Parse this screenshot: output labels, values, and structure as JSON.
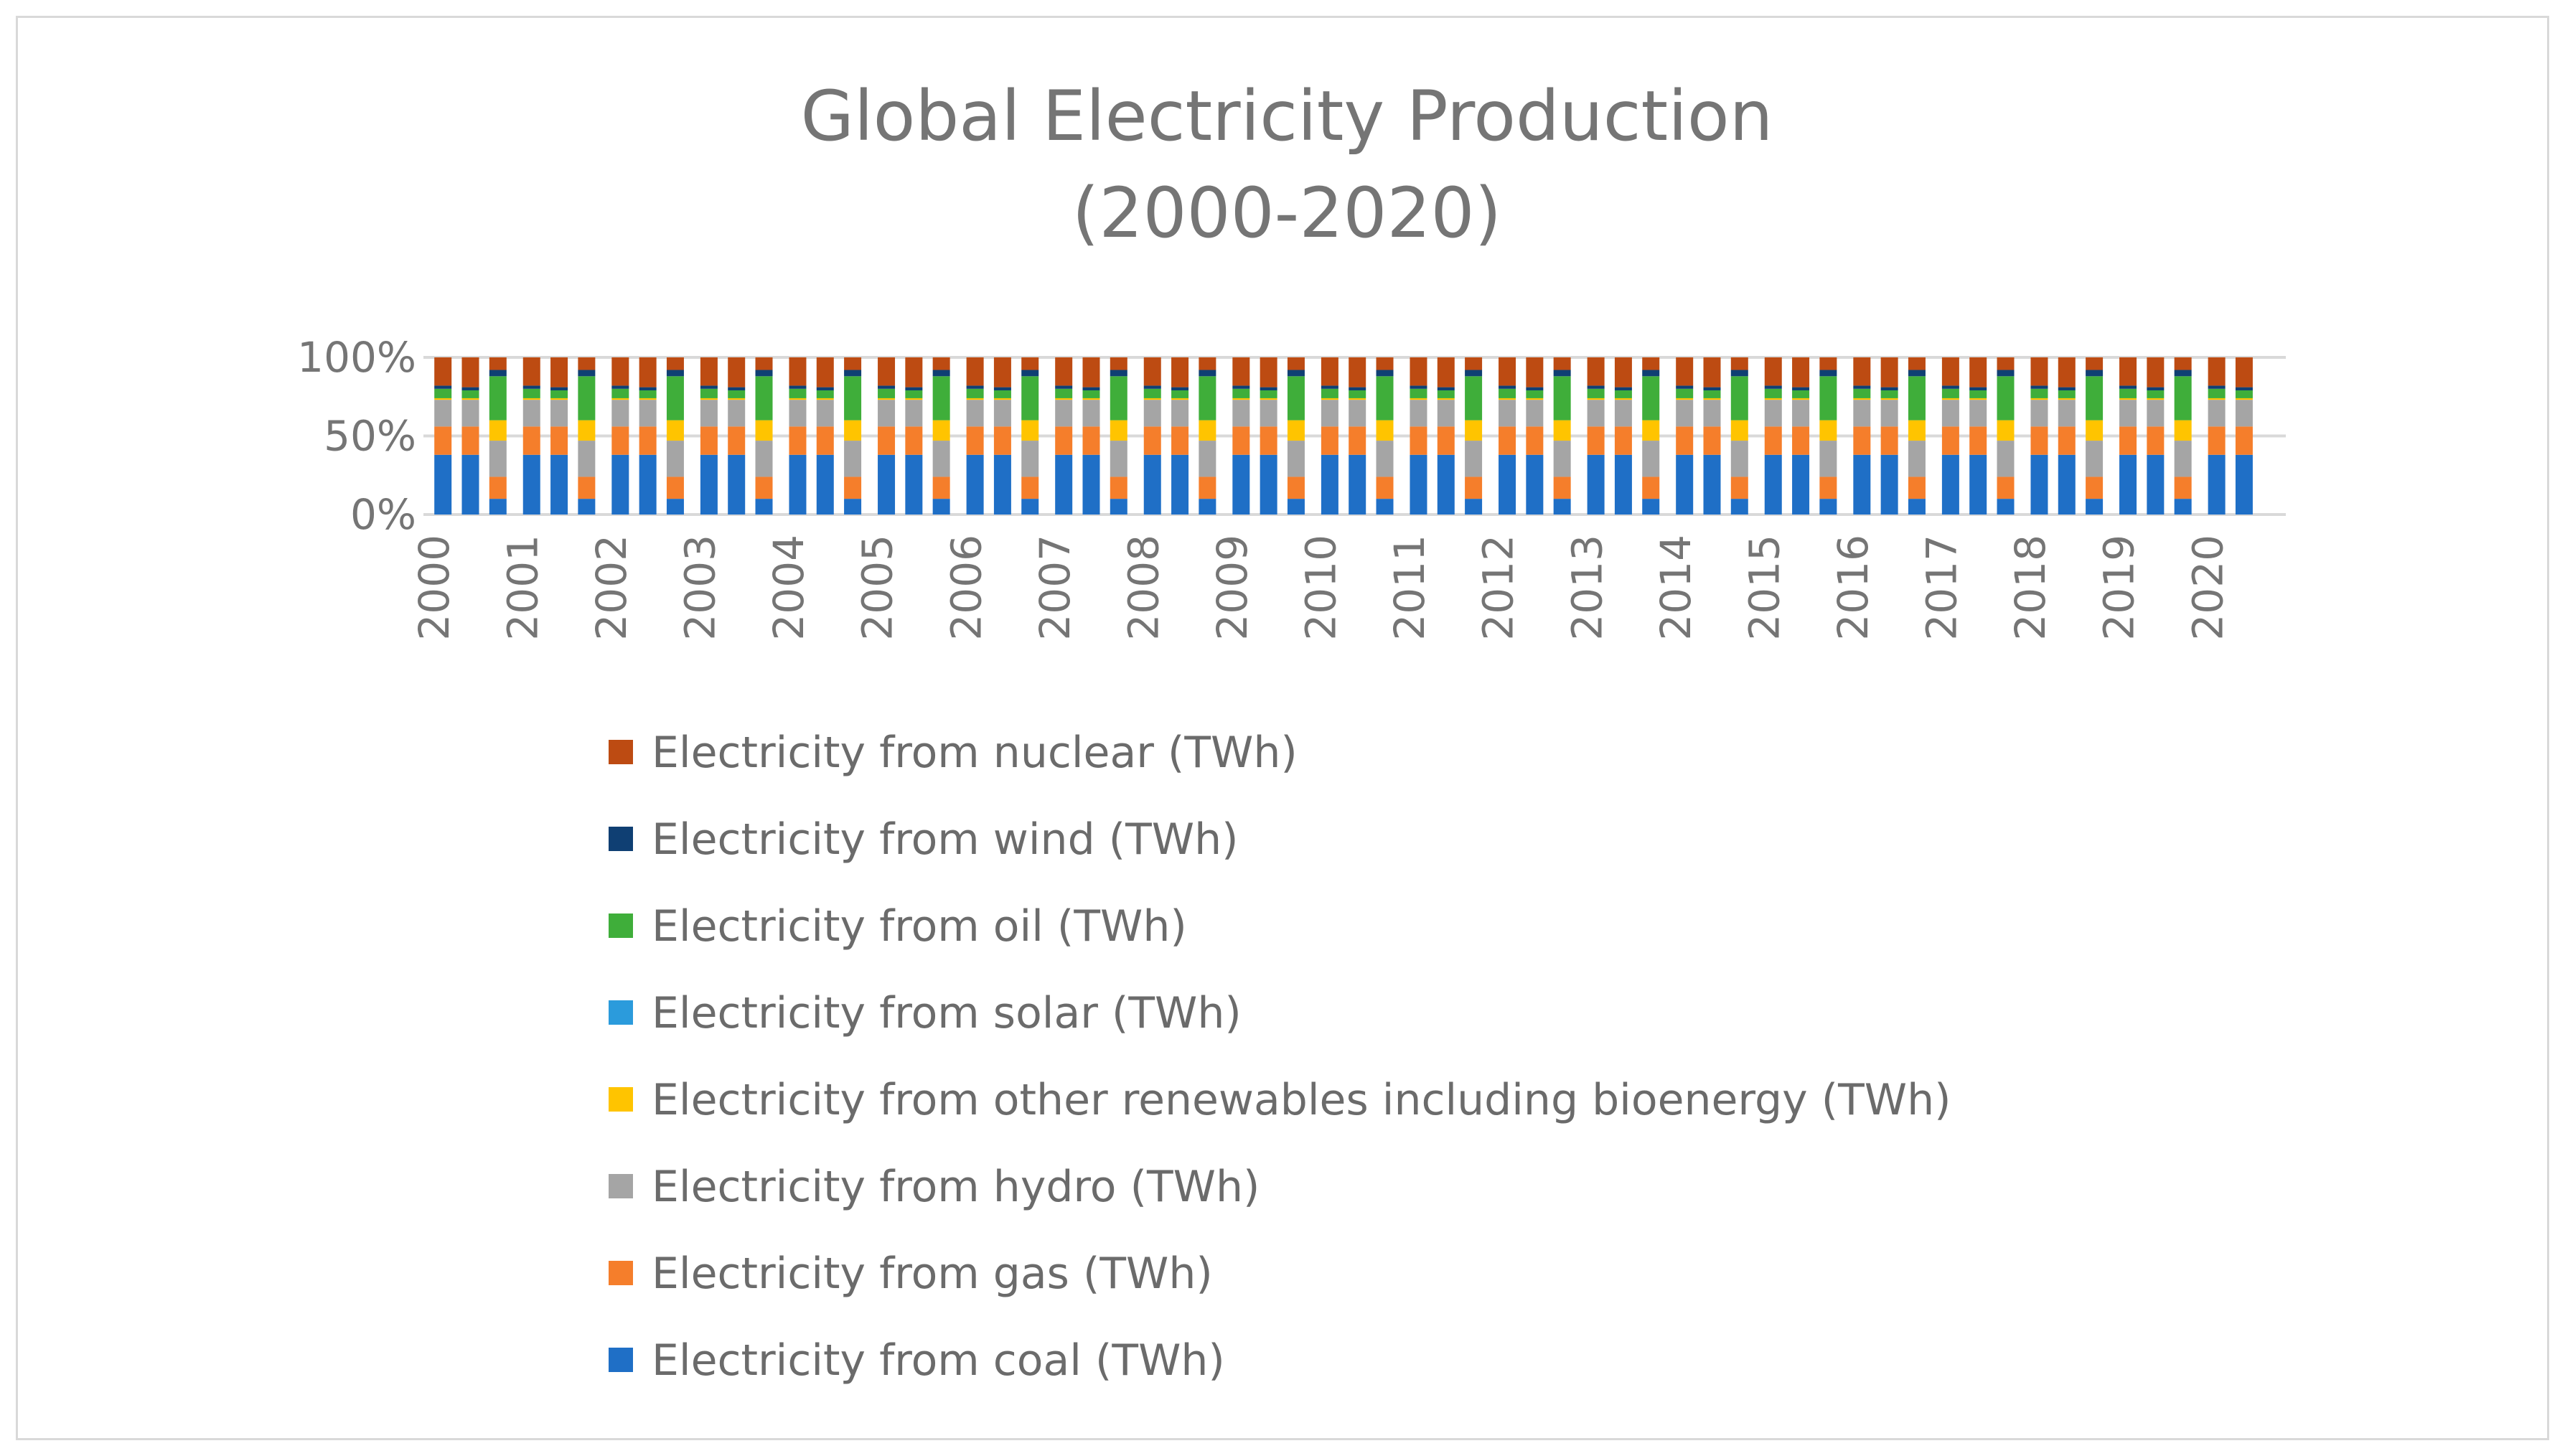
{
  "chart_data": {
    "type": "bar",
    "stacked": "percent",
    "title_lines": [
      "Global Electricity Production",
      "(2000-2020)"
    ],
    "y_ticks": [
      "0%",
      "50%",
      "100%"
    ],
    "ylim": [
      0,
      100
    ],
    "grid": true,
    "legend_position": "bottom",
    "categories": [
      "2000",
      "2001",
      "2002",
      "2003",
      "2004",
      "2005",
      "2006",
      "2007",
      "2008",
      "2009",
      "2010",
      "2011",
      "2012",
      "2013",
      "2014",
      "2015",
      "2016",
      "2017",
      "2018",
      "2019",
      "2020"
    ],
    "bars_per_category": 3,
    "group_profiles": [
      {
        "coal": 38,
        "gas": 18,
        "hydro": 17,
        "other_renewables": 1,
        "solar": 0,
        "oil": 6,
        "wind": 2,
        "nuclear": 18
      },
      {
        "coal": 38,
        "gas": 18,
        "hydro": 17,
        "other_renewables": 1,
        "solar": 0,
        "oil": 5,
        "wind": 2,
        "nuclear": 19
      },
      {
        "coal": 10,
        "gas": 14,
        "hydro": 23,
        "other_renewables": 13,
        "solar": 0,
        "oil": 28,
        "wind": 4,
        "nuclear": 8
      }
    ],
    "series": [
      {
        "name": "Electricity from coal (TWh)",
        "key": "coal",
        "color": "#1f6fc6"
      },
      {
        "name": "Electricity from gas (TWh)",
        "key": "gas",
        "color": "#f57e2b"
      },
      {
        "name": "Electricity from hydro (TWh)",
        "key": "hydro",
        "color": "#a5a5a5"
      },
      {
        "name": "Electricity from other renewables including bioenergy (TWh)",
        "key": "other_renewables",
        "color": "#ffc400"
      },
      {
        "name": "Electricity from solar (TWh)",
        "key": "solar",
        "color": "#2b9bdc"
      },
      {
        "name": "Electricity from oil (TWh)",
        "key": "oil",
        "color": "#3fae3a"
      },
      {
        "name": "Electricity from wind (TWh)",
        "key": "wind",
        "color": "#0f3f73"
      },
      {
        "name": "Electricity from nuclear (TWh)",
        "key": "nuclear",
        "color": "#bd4b12"
      }
    ],
    "legend_order": [
      "nuclear",
      "wind",
      "oil",
      "solar",
      "other_renewables",
      "hydro",
      "gas",
      "coal"
    ]
  }
}
